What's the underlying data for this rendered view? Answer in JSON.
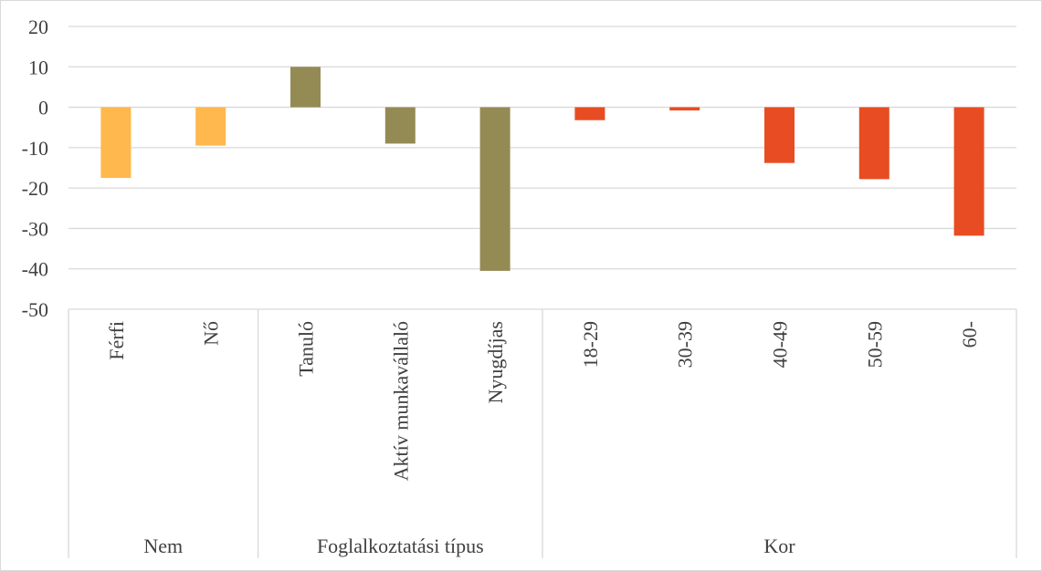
{
  "chart_data": {
    "type": "bar",
    "title": "",
    "xlabel": "",
    "ylabel": "",
    "ylim": [
      -50,
      20
    ],
    "yticks": [
      20,
      10,
      0,
      -10,
      -20,
      -30,
      -40,
      -50
    ],
    "grid": true,
    "legend": "none",
    "groups": [
      {
        "label": "Nem",
        "color": "#FFB84D",
        "categories": [
          "Férfi",
          "Nő"
        ],
        "values": [
          -17.5,
          -9.5
        ]
      },
      {
        "label": "Foglalkoztatási típus",
        "color": "#948A54",
        "categories": [
          "Tanuló",
          "Aktív munkavállaló",
          "Nyugdíjas"
        ],
        "values": [
          10,
          -9,
          -40.5
        ]
      },
      {
        "label": "Kor",
        "color": "#E84C22",
        "categories": [
          "18-29",
          "30-39",
          "40-49",
          "50-59",
          "60-"
        ],
        "values": [
          -3.2,
          -0.8,
          -13.8,
          -17.8,
          -31.8
        ]
      }
    ]
  },
  "colors": {
    "grid": "#d9d9d9",
    "axis_text": "#404040"
  }
}
